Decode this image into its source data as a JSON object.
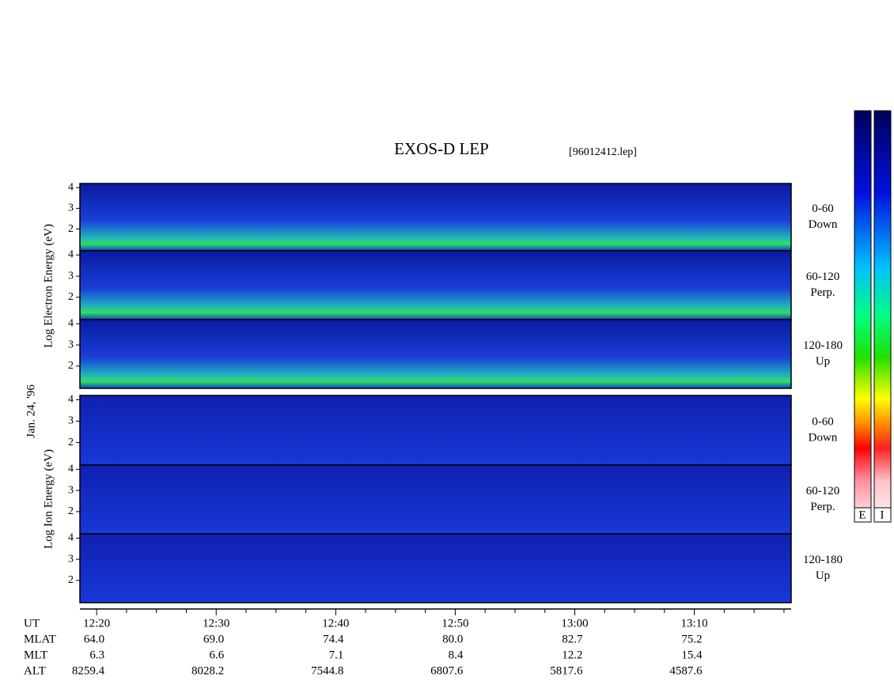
{
  "chart_data": {
    "type": "spectrogram",
    "title": "EXOS-D LEP",
    "file": "[96012412.lep]",
    "date_label": "Jan. 24, '96",
    "groups": [
      {
        "label": "Log Electron Energy (eV)",
        "panels": [
          {
            "angle": "0-60",
            "dir": "Down"
          },
          {
            "angle": "60-120",
            "dir": "Perp."
          },
          {
            "angle": "120-180",
            "dir": "Up"
          }
        ]
      },
      {
        "label": "Log Ion Energy (eV)",
        "panels": [
          {
            "angle": "0-60",
            "dir": "Down"
          },
          {
            "angle": "60-120",
            "dir": "Perp."
          },
          {
            "angle": "120-180",
            "dir": "Up"
          }
        ]
      }
    ],
    "ylim": [
      0.95,
      4.2
    ],
    "yticks": [
      2,
      3,
      4
    ],
    "xlim": [
      18.6,
      78.1
    ],
    "xticks": [
      {
        "value": 20,
        "label": "12:20"
      },
      {
        "value": 30,
        "label": "12:30"
      },
      {
        "value": 40,
        "label": "12:40"
      },
      {
        "value": 50,
        "label": "12:50"
      },
      {
        "value": 60,
        "label": "13:00"
      },
      {
        "value": 70,
        "label": "13:10"
      }
    ],
    "minor_xticks": [
      22.5,
      25,
      27.5,
      32.5,
      35,
      37.5,
      42.5,
      45,
      47.5,
      52.5,
      55,
      57.5,
      62.5,
      65,
      67.5,
      72.5,
      75,
      77.5
    ],
    "ephemeris": [
      {
        "name": "UT"
      },
      {
        "name": "MLAT",
        "values": [
          "64.0",
          "69.0",
          "74.4",
          "80.0",
          "82.7",
          "75.2"
        ]
      },
      {
        "name": "MLT",
        "values": [
          "6.3",
          "6.6",
          "7.1",
          "8.4",
          "12.2",
          "15.4"
        ]
      },
      {
        "name": "ALT",
        "values": [
          "8259.4",
          "8028.2",
          "7544.8",
          "6807.6",
          "5817.6",
          "4587.6"
        ]
      }
    ],
    "colorbars": [
      "E",
      "I"
    ]
  }
}
